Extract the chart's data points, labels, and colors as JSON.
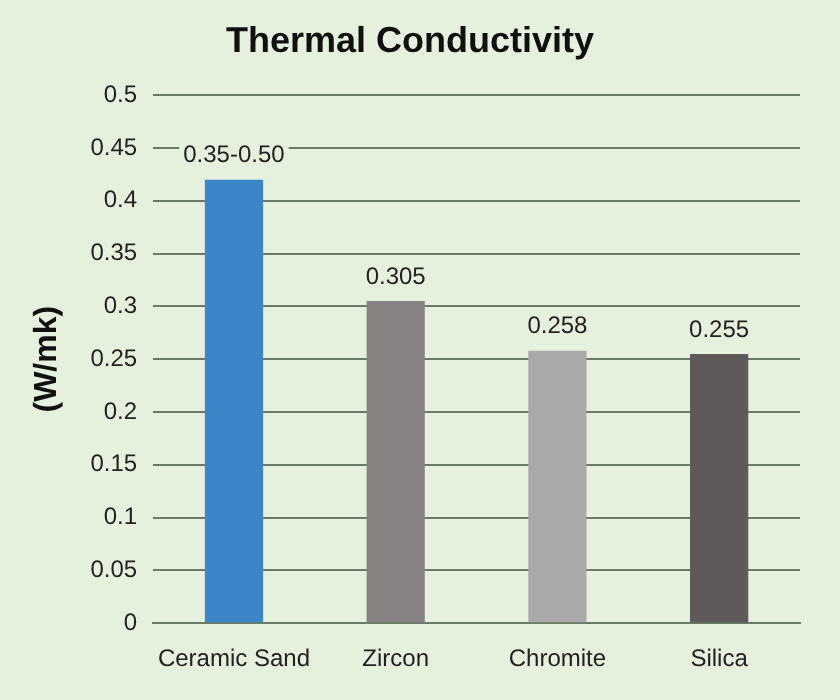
{
  "chart_data": {
    "type": "bar",
    "title": "Thermal Conductivity",
    "ylabel": "(W/mk)",
    "categories": [
      "Ceramic Sand",
      "Zircon",
      "Chromite",
      "Silica"
    ],
    "values": [
      0.42,
      0.305,
      0.258,
      0.255
    ],
    "colors": [
      "#3a86c8",
      "#878382",
      "#a9a9a9",
      "#5e5a59"
    ],
    "value_labels": [
      "0.35-0.50",
      "0.305",
      "0.258",
      "0.255"
    ],
    "ylim": [
      0,
      0.5
    ],
    "yticks": [
      0,
      0.05,
      0.1,
      0.15,
      0.2,
      0.25,
      0.3,
      0.35,
      0.4,
      0.45,
      0.5
    ],
    "grid": "y",
    "legend": false
  }
}
